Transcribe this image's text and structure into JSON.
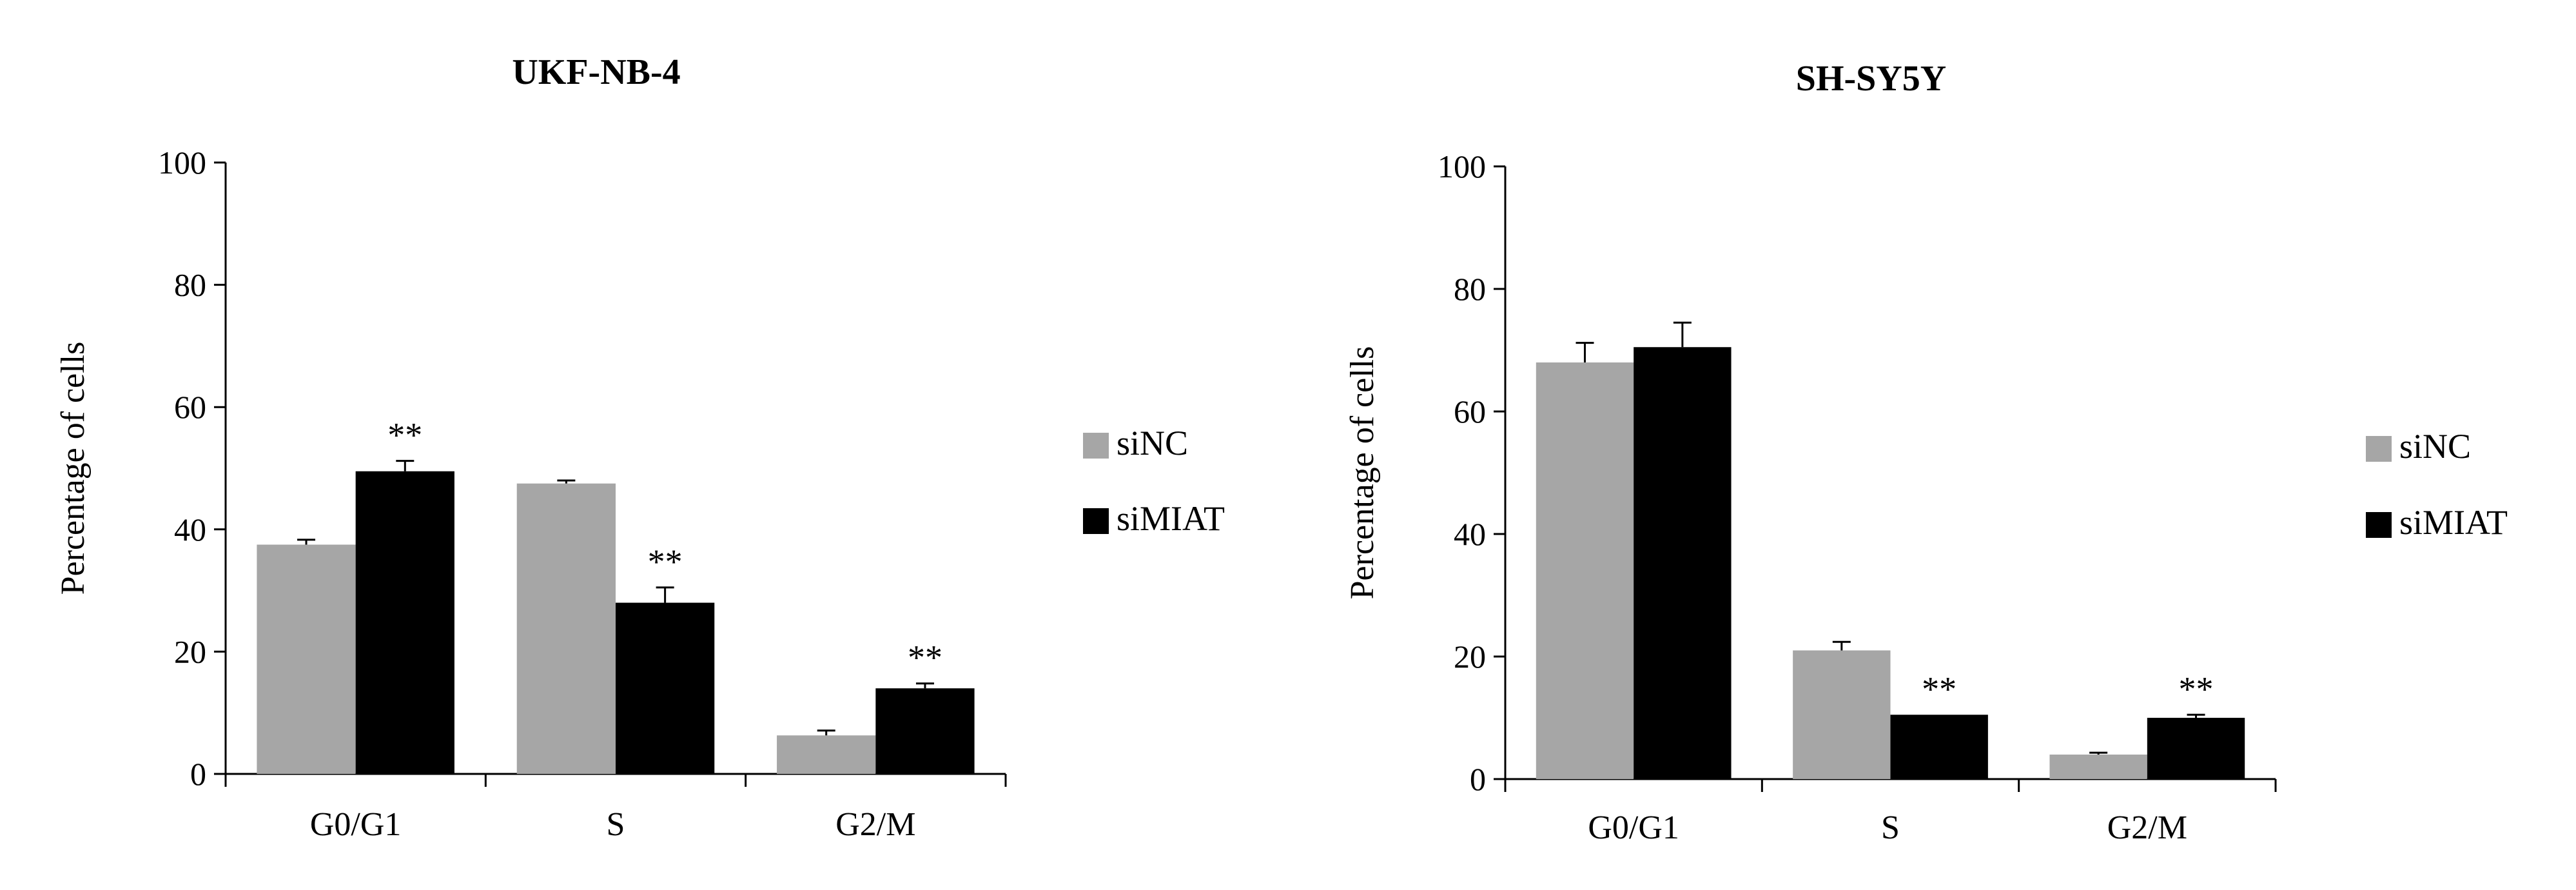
{
  "colors": {
    "siNC": "#a6a6a6",
    "siMIAT": "#000000",
    "axis": "#000000"
  },
  "chart_data": [
    {
      "type": "bar",
      "title": "UKF-NB-4",
      "xlabel": "",
      "ylabel": "Percentage of cells",
      "categories": [
        "G0/G1",
        "S",
        "G2/M"
      ],
      "ylim": [
        0,
        100
      ],
      "yticks": [
        "0",
        "20",
        "40",
        "60",
        "80",
        "100"
      ],
      "ytick_values": [
        0,
        20,
        40,
        60,
        80,
        100
      ],
      "legend_position": "right",
      "series": [
        {
          "name": "siNC",
          "values": [
            37.5,
            47.5,
            6.3
          ],
          "errors": [
            0.8,
            0.5,
            0.8
          ]
        },
        {
          "name": "siMIAT",
          "values": [
            49.5,
            28.0,
            14.0
          ],
          "errors": [
            1.7,
            2.5,
            0.8
          ]
        }
      ],
      "annotations": [
        {
          "series": "siMIAT",
          "category": "G0/G1",
          "text": "**"
        },
        {
          "series": "siMIAT",
          "category": "S",
          "text": "**"
        },
        {
          "series": "siMIAT",
          "category": "G2/M",
          "text": "**"
        }
      ]
    },
    {
      "type": "bar",
      "title": "SH-SY5Y",
      "xlabel": "",
      "ylabel": "Percentage of cells",
      "categories": [
        "G0/G1",
        "S",
        "G2/M"
      ],
      "ylim": [
        0,
        100
      ],
      "yticks": [
        "0",
        "20",
        "40",
        "60",
        "80",
        "100"
      ],
      "ytick_values": [
        0,
        20,
        40,
        60,
        80,
        100
      ],
      "legend_position": "right",
      "series": [
        {
          "name": "siNC",
          "values": [
            68.0,
            21.0,
            4.0
          ],
          "errors": [
            3.2,
            1.4,
            0.3
          ]
        },
        {
          "name": "siMIAT",
          "values": [
            70.5,
            10.5,
            10.0
          ],
          "errors": [
            4.0,
            0.0,
            0.5
          ]
        }
      ],
      "annotations": [
        {
          "series": "siMIAT",
          "category": "S",
          "text": "**"
        },
        {
          "series": "siMIAT",
          "category": "G2/M",
          "text": "**"
        }
      ]
    }
  ]
}
